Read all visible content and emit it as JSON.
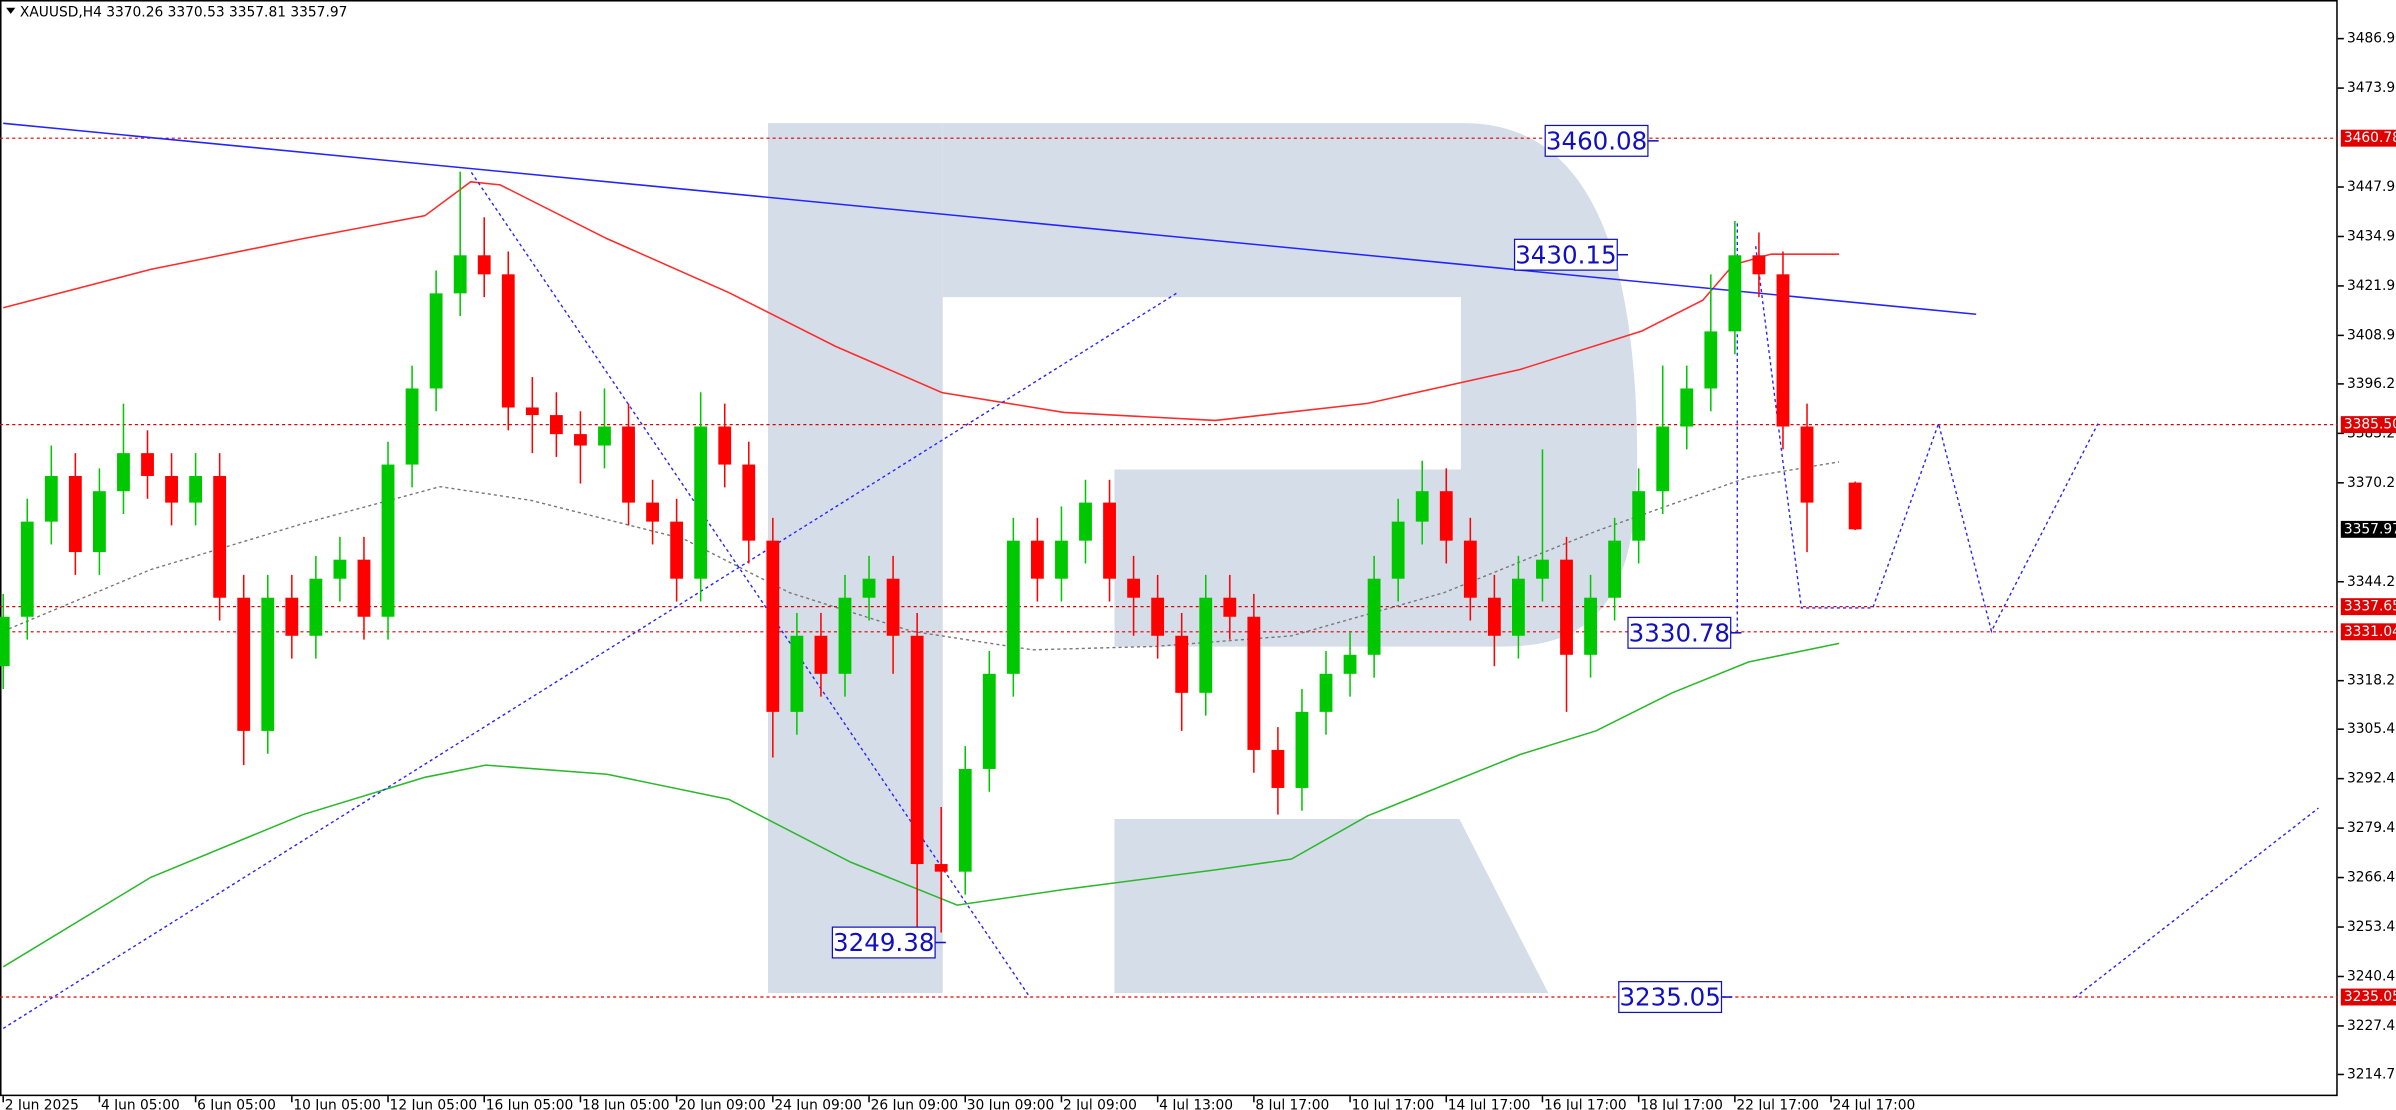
{
  "chart_data": {
    "type": "candlestick",
    "title": "XAUUSD,H4  3370.26 3370.53 3357.81 3357.97",
    "up_color": "#00c800",
    "down_color": "#ff0000",
    "grid": false,
    "xlim": [
      -0.4,
      291.2
    ],
    "ylim": [
      3209.0,
      3497.1
    ],
    "xticks": [
      {
        "value": 0,
        "label": "2 Jun 2025"
      },
      {
        "value": 12,
        "label": "4 Jun 05:00"
      },
      {
        "value": 24,
        "label": "6 Jun 05:00"
      },
      {
        "value": 36,
        "label": "10 Jun 05:00"
      },
      {
        "value": 48,
        "label": "12 Jun 05:00"
      },
      {
        "value": 60,
        "label": "16 Jun 05:00"
      },
      {
        "value": 72,
        "label": "18 Jun 05:00"
      },
      {
        "value": 84,
        "label": "20 Jun 09:00"
      },
      {
        "value": 96,
        "label": "24 Jun 09:00"
      },
      {
        "value": 108,
        "label": "26 Jun 09:00"
      },
      {
        "value": 120,
        "label": "30 Jun 09:00"
      },
      {
        "value": 132,
        "label": "2 Jul 09:00"
      },
      {
        "value": 144,
        "label": "4 Jul 13:00"
      },
      {
        "value": 156,
        "label": "8 Jul 17:00"
      },
      {
        "value": 168,
        "label": "10 Jul 17:00"
      },
      {
        "value": 180,
        "label": "14 Jul 17:00"
      },
      {
        "value": 192,
        "label": "16 Jul 17:00"
      },
      {
        "value": 204,
        "label": "18 Jul 17:00"
      },
      {
        "value": 216,
        "label": "22 Jul 17:00"
      },
      {
        "value": 228,
        "label": "24 Jul 17:00"
      }
    ],
    "yticks": [
      3486.95,
      3473.95,
      3447.95,
      3434.95,
      3421.95,
      3408.95,
      {
        "value": 3396.2,
        "label": "3396.20"
      },
      {
        "value": 3383.2,
        "label": "3383.20"
      },
      {
        "value": 3370.2,
        "label": "3370.20"
      },
      {
        "value": 3344.2,
        "label": "3344.20"
      },
      {
        "value": 3318.2,
        "label": "3318.20"
      },
      3305.45,
      3292.45,
      3279.45,
      3266.45,
      3253.45,
      3240.45,
      3227.45,
      {
        "value": 3214.7,
        "label": "3214.70"
      }
    ],
    "x": [
      0,
      3,
      6,
      9,
      12,
      15,
      18,
      21,
      24,
      27,
      30,
      33,
      36,
      39,
      42,
      45,
      48,
      51,
      54,
      57,
      60,
      63,
      66,
      69,
      72,
      75,
      78,
      81,
      84,
      87,
      90,
      93,
      96,
      99,
      102,
      105,
      108,
      111,
      114,
      117,
      120,
      123,
      126,
      129,
      132,
      135,
      138,
      141,
      144,
      147,
      150,
      153,
      156,
      159,
      162,
      165,
      168,
      171,
      174,
      177,
      180,
      183,
      186,
      189,
      192,
      195,
      198,
      201,
      204,
      207,
      210,
      213,
      216,
      219,
      222,
      225,
      231
    ],
    "open": [
      3322,
      3335,
      3360,
      3372,
      3352,
      3368,
      3378,
      3372,
      3365,
      3372,
      3340,
      3305,
      3340,
      3330,
      3345,
      3350,
      3335,
      3375,
      3395,
      3420,
      3430,
      3425,
      3390,
      3388,
      3383,
      3380,
      3385,
      3365,
      3360,
      3345,
      3385,
      3375,
      3355,
      3310,
      3330,
      3320,
      3340,
      3345,
      3330,
      3270,
      3268,
      3295,
      3320,
      3355,
      3345,
      3355,
      3365,
      3345,
      3340,
      3330,
      3315,
      3340,
      3335,
      3300,
      3290,
      3310,
      3320,
      3325,
      3345,
      3360,
      3368,
      3355,
      3340,
      3330,
      3345,
      3350,
      3325,
      3340,
      3355,
      3368,
      3385,
      3395,
      3410,
      3430,
      3425,
      3385,
      3370.26
    ],
    "high": [
      3341,
      3366,
      3380,
      3378,
      3374,
      3391,
      3384,
      3378,
      3378,
      3378,
      3346,
      3346,
      3346,
      3351,
      3356,
      3356,
      3381,
      3401,
      3426,
      3452,
      3440,
      3431,
      3398,
      3394,
      3389,
      3395,
      3391,
      3371,
      3366,
      3394,
      3391,
      3381,
      3361,
      3336,
      3336,
      3346,
      3351,
      3351,
      3336,
      3285,
      3301,
      3326,
      3361,
      3361,
      3364,
      3371,
      3371,
      3351,
      3346,
      3336,
      3346,
      3346,
      3341,
      3306,
      3316,
      3326,
      3331,
      3351,
      3366,
      3376,
      3374,
      3361,
      3346,
      3351,
      3379,
      3356,
      3346,
      3361,
      3374,
      3401,
      3401,
      3425,
      3439,
      3436,
      3431,
      3391,
      3370.53
    ],
    "low": [
      3316,
      3329,
      3354,
      3346,
      3346,
      3362,
      3366,
      3359,
      3359,
      3334,
      3296,
      3299,
      3324,
      3324,
      3339,
      3329,
      3329,
      3369,
      3389,
      3414,
      3419,
      3384,
      3378,
      3377,
      3370,
      3374,
      3359,
      3354,
      3339,
      3339,
      3369,
      3349,
      3298,
      3304,
      3314,
      3314,
      3334,
      3320,
      3250,
      3252,
      3262,
      3289,
      3314,
      3339,
      3339,
      3349,
      3339,
      3330,
      3324,
      3305,
      3309,
      3329,
      3294,
      3283,
      3284,
      3304,
      3314,
      3319,
      3339,
      3354,
      3349,
      3334,
      3322,
      3324,
      3339,
      3310,
      3319,
      3334,
      3349,
      3362,
      3379,
      3389,
      3404,
      3419,
      3379,
      3352,
      3357.81
    ],
    "close": [
      3335,
      3360,
      3372,
      3352,
      3368,
      3378,
      3372,
      3365,
      3372,
      3340,
      3305,
      3340,
      3330,
      3345,
      3350,
      3335,
      3375,
      3395,
      3420,
      3430,
      3425,
      3390,
      3388,
      3383,
      3380,
      3385,
      3365,
      3360,
      3345,
      3385,
      3375,
      3355,
      3310,
      3330,
      3320,
      3340,
      3345,
      3330,
      3270,
      3268,
      3295,
      3320,
      3355,
      3345,
      3355,
      3365,
      3345,
      3340,
      3330,
      3315,
      3340,
      3335,
      3300,
      3290,
      3310,
      3320,
      3325,
      3345,
      3360,
      3368,
      3355,
      3340,
      3330,
      3345,
      3350,
      3325,
      3340,
      3355,
      3368,
      3385,
      3395,
      3410,
      3430,
      3425,
      3385,
      3365,
      3357.97
    ],
    "lines": [
      {
        "color": "#ff2a2a",
        "style": "solid",
        "x": [
          0,
          18.4,
          37.4,
          52.6,
          58.3,
          62,
          75.3,
          90.5,
          103.8,
          117.1,
          132.3,
          151.2,
          170.2,
          189.2,
          204.4,
          212,
          215.8,
          220.5,
          229
        ],
        "values": [
          3416.2,
          3426.3,
          3434.4,
          3440.4,
          3449.3,
          3448.5,
          3434.4,
          3420.2,
          3406.1,
          3393.9,
          3388.7,
          3386.6,
          3391.1,
          3400.0,
          3410.1,
          3418.2,
          3427.5,
          3430.3,
          3430.3
        ]
      },
      {
        "color": "#2cb82c",
        "style": "solid",
        "x": [
          0,
          18.4,
          37.4,
          52.6,
          60.2,
          75.3,
          90.5,
          105.7,
          119,
          132.3,
          151.2,
          160.7,
          170.2,
          189.2,
          198.7,
          208.2,
          217.7,
          229
        ],
        "values": [
          3243.0,
          3266.5,
          3283.0,
          3292.8,
          3296.0,
          3293.6,
          3287.0,
          3270.5,
          3259.2,
          3263.3,
          3268.5,
          3271.3,
          3282.7,
          3298.8,
          3305.0,
          3315.0,
          3323.1,
          3328.0
        ]
      },
      {
        "color": "#777777",
        "style": "dotted",
        "x": [
          0,
          18.4,
          37.4,
          54.5,
          65.8,
          84.8,
          98.1,
          113.3,
          128.4,
          143.6,
          160.7,
          179.7,
          198.7,
          217.7,
          229
        ],
        "values": [
          3331.2,
          3347.4,
          3359.5,
          3369.2,
          3365.6,
          3355.5,
          3341.3,
          3331.2,
          3326.3,
          3327.2,
          3330.0,
          3341.3,
          3357.5,
          3371.7,
          3375.7
        ]
      },
      {
        "color": "#2424ff",
        "style": "solid",
        "x": [
          0,
          246.1
        ],
        "values": [
          3464.7,
          3414.5
        ]
      },
      {
        "color": "#2424ff",
        "style": "dotted",
        "x": [
          0,
          146.5
        ],
        "values": [
          3226.8,
          3420.2
        ]
      },
      {
        "color": "#2424ff",
        "style": "dotted",
        "x": [
          58.4,
          128.1
        ],
        "values": [
          3451.8,
          3234.9
        ]
      },
      {
        "color": "#2424ff",
        "style": "dotted",
        "x": [
          216.3,
          216.3
        ],
        "values": [
          3438.4,
          3331.2
        ]
      },
      {
        "color": "#2424ff",
        "style": "dotted",
        "x": [
          218.6,
          224.3,
          233.2,
          241.4,
          248,
          261.3
        ],
        "values": [
          3432.4,
          3337.3,
          3337.3,
          3385.8,
          3331.2,
          3385.8
        ]
      },
      {
        "color": "#2424ff",
        "style": "dotted",
        "x": [
          258.4,
          288.8
        ],
        "values": [
          3234.9,
          3284.7
        ]
      }
    ],
    "level_color": "#e00000",
    "levels": [
      3460.78,
      {
        "value": 3385.5,
        "label": "3385.50"
      },
      3337.65,
      3331.04,
      3235.05
    ],
    "annotations": [
      3460.08,
      3430.15,
      3249.38,
      3330.78,
      3235.05
    ]
  }
}
